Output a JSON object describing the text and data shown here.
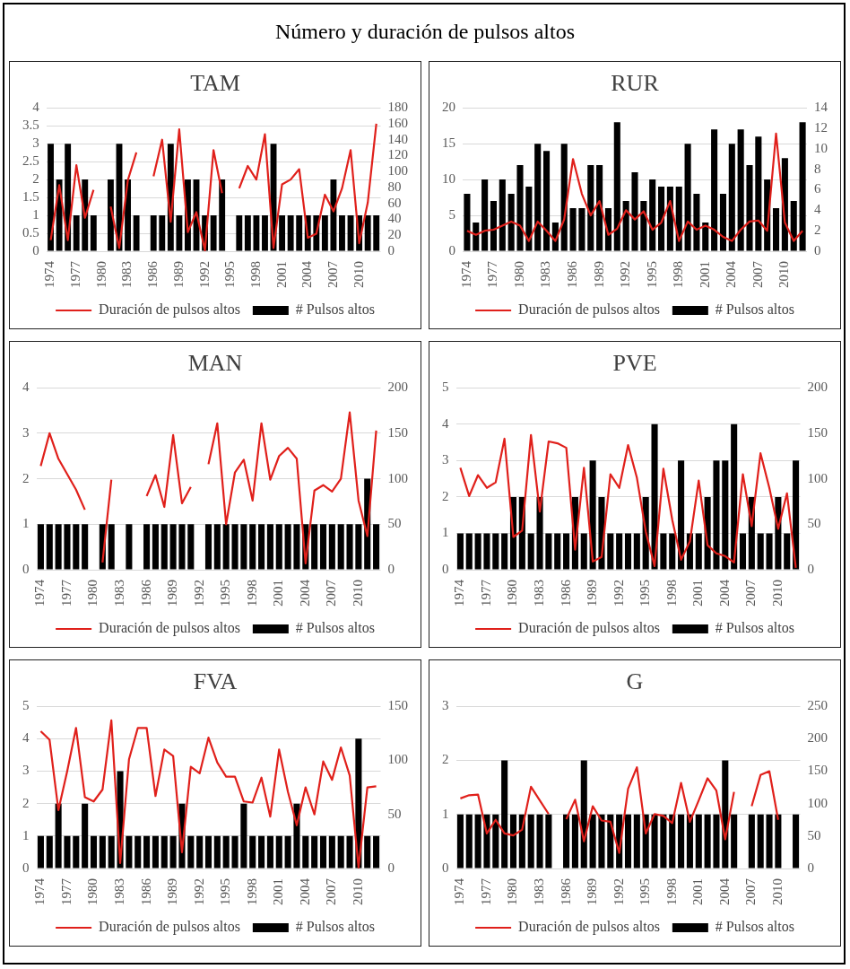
{
  "chart_data": [
    {
      "type": "bar",
      "title": "TAM",
      "annotations": [
        "Número y duración de pulsos altos"
      ],
      "categories": [
        "1974",
        null,
        null,
        "1977",
        null,
        null,
        "1980",
        null,
        null,
        "1983",
        null,
        null,
        "1986",
        null,
        null,
        "1989",
        null,
        null,
        "1992",
        null,
        null,
        "1995",
        null,
        null,
        "1998",
        null,
        null,
        "2001",
        null,
        null,
        "2004",
        null,
        null,
        "2007",
        null,
        null,
        "2010",
        null,
        null
      ],
      "series": [
        {
          "name": "# Pulsos altos",
          "color": "#000000",
          "values": [
            3,
            2,
            3,
            1,
            2,
            1,
            null,
            2,
            3,
            2,
            1,
            null,
            1,
            1,
            3,
            1,
            2,
            2,
            1,
            1,
            2,
            null,
            1,
            1,
            1,
            1,
            3,
            1,
            1,
            1,
            1,
            1,
            1,
            2,
            1,
            1,
            1,
            1,
            1
          ]
        },
        {
          "name": "Duración de pulsos altos",
          "type": "line",
          "axis": "y2",
          "color": "#e0201b",
          "values": [
            14,
            83,
            14,
            108,
            42,
            77,
            null,
            56,
            4,
            89,
            124,
            null,
            94,
            140,
            37,
            153,
            24,
            49,
            1,
            127,
            73,
            null,
            79,
            107,
            90,
            147,
            4,
            84,
            90,
            103,
            17,
            22,
            71,
            50,
            79,
            127,
            10,
            61,
            160
          ]
        }
      ],
      "ylim": [
        0,
        4
      ],
      "yticks": [
        0,
        0.5,
        1,
        1.5,
        2,
        2.5,
        3,
        3.5,
        4
      ],
      "y2lim": [
        0,
        180
      ],
      "y2ticks": [
        0,
        20,
        40,
        60,
        80,
        100,
        120,
        140,
        160,
        180
      ],
      "grid": "y",
      "legend": "bottom"
    },
    {
      "type": "bar",
      "title": "RUR",
      "categories": [
        "1974",
        null,
        null,
        "1977",
        null,
        null,
        "1980",
        null,
        null,
        "1983",
        null,
        null,
        "1986",
        null,
        null,
        "1989",
        null,
        null,
        "1992",
        null,
        null,
        "1995",
        null,
        null,
        "1998",
        null,
        null,
        "2001",
        null,
        null,
        "2004",
        null,
        null,
        "2007",
        null,
        null,
        "2010",
        null,
        null
      ],
      "series": [
        {
          "name": "# Pulsos altos",
          "color": "#000000",
          "values": [
            8,
            4,
            10,
            7,
            10,
            8,
            12,
            9,
            15,
            14,
            4,
            15,
            6,
            6,
            12,
            12,
            6,
            18,
            7,
            11,
            7,
            10,
            9,
            9,
            9,
            15,
            8,
            4,
            17,
            8,
            15,
            17,
            12,
            16,
            10,
            6,
            13,
            7,
            18
          ]
        },
        {
          "name": "Duración de pulsos altos",
          "type": "line",
          "axis": "y2",
          "color": "#e0201b",
          "values": [
            2.0,
            1.6,
            2.0,
            2.1,
            2.5,
            2.9,
            2.5,
            1.0,
            2.9,
            2.0,
            1.0,
            3.1,
            9.0,
            5.6,
            3.5,
            4.9,
            1.6,
            2.2,
            4.0,
            3.1,
            3.9,
            2.1,
            2.8,
            4.9,
            1.0,
            2.9,
            2.1,
            2.5,
            2.1,
            1.4,
            1.0,
            2.1,
            2.9,
            3.0,
            2.0,
            11.5,
            2.8,
            1.0,
            2.0
          ]
        }
      ],
      "ylim": [
        0,
        20
      ],
      "yticks": [
        0,
        5,
        10,
        15,
        20
      ],
      "y2lim": [
        0,
        14
      ],
      "y2ticks": [
        0,
        2,
        4,
        6,
        8,
        10,
        12,
        14
      ],
      "grid": "y",
      "legend": "bottom"
    },
    {
      "type": "bar",
      "title": "MAN",
      "categories": [
        "1974",
        null,
        null,
        "1977",
        null,
        null,
        "1980",
        null,
        null,
        "1983",
        null,
        null,
        "1986",
        null,
        null,
        "1989",
        null,
        null,
        "1992",
        null,
        null,
        "1995",
        null,
        null,
        "1998",
        null,
        null,
        "2001",
        null,
        null,
        "2004",
        null,
        null,
        "2007",
        null,
        null,
        "2010",
        null,
        null
      ],
      "series": [
        {
          "name": "# Pulsos altos",
          "color": "#000000",
          "values": [
            1,
            1,
            1,
            1,
            1,
            1,
            null,
            1,
            1,
            null,
            1,
            null,
            1,
            1,
            1,
            1,
            1,
            1,
            null,
            1,
            1,
            1,
            1,
            1,
            1,
            1,
            1,
            1,
            1,
            1,
            1,
            1,
            1,
            1,
            1,
            1,
            1,
            2,
            1
          ]
        },
        {
          "name": "Duración de pulsos altos",
          "type": "line",
          "axis": "y2",
          "color": "#e0201b",
          "values": [
            114,
            150,
            122,
            105,
            88,
            66,
            null,
            8,
            99,
            null,
            null,
            null,
            81,
            104,
            69,
            148,
            73,
            91,
            null,
            116,
            161,
            50,
            107,
            121,
            76,
            161,
            99,
            125,
            134,
            122,
            7,
            87,
            93,
            86,
            100,
            173,
            76,
            37,
            153
          ]
        }
      ],
      "ylim": [
        0,
        4
      ],
      "yticks": [
        0,
        1,
        2,
        3,
        4
      ],
      "y2lim": [
        0,
        200
      ],
      "y2ticks": [
        0,
        50,
        100,
        150,
        200
      ],
      "grid": "y",
      "legend": "bottom"
    },
    {
      "type": "bar",
      "title": "PVE",
      "categories": [
        "1974",
        null,
        null,
        "1977",
        null,
        null,
        "1980",
        null,
        null,
        "1983",
        null,
        null,
        "1986",
        null,
        null,
        "1989",
        null,
        null,
        "1992",
        null,
        null,
        "1995",
        null,
        null,
        "1998",
        null,
        null,
        "2001",
        null,
        null,
        "2004",
        null,
        null,
        "2007",
        null,
        null,
        "2010",
        null,
        null
      ],
      "series": [
        {
          "name": "# Pulsos altos",
          "color": "#000000",
          "values": [
            1,
            1,
            1,
            1,
            1,
            1,
            2,
            2,
            1,
            2,
            1,
            1,
            1,
            2,
            1,
            3,
            2,
            1,
            1,
            1,
            1,
            2,
            4,
            1,
            1,
            3,
            1,
            1,
            2,
            3,
            3,
            4,
            1,
            2,
            1,
            1,
            2,
            1,
            3
          ]
        },
        {
          "name": "Duración de pulsos altos",
          "type": "line",
          "axis": "y2",
          "color": "#e0201b",
          "values": [
            112,
            81,
            104,
            90,
            96,
            144,
            36,
            43,
            148,
            64,
            141,
            139,
            134,
            22,
            112,
            9,
            14,
            105,
            90,
            137,
            101,
            42,
            4,
            111,
            55,
            11,
            31,
            98,
            27,
            18,
            15,
            8,
            105,
            48,
            128,
            90,
            45,
            84,
            2
          ]
        }
      ],
      "ylim": [
        0,
        5
      ],
      "yticks": [
        0,
        1,
        2,
        3,
        4,
        5
      ],
      "y2lim": [
        0,
        200
      ],
      "y2ticks": [
        0,
        50,
        100,
        150,
        200
      ],
      "grid": "y",
      "legend": "bottom"
    },
    {
      "type": "bar",
      "title": "FVA",
      "categories": [
        "1974",
        null,
        null,
        "1977",
        null,
        null,
        "1980",
        null,
        null,
        "1983",
        null,
        null,
        "1986",
        null,
        null,
        "1989",
        null,
        null,
        "1992",
        null,
        null,
        "1995",
        null,
        null,
        "1998",
        null,
        null,
        "2001",
        null,
        null,
        "2004",
        null,
        null,
        "2007",
        null,
        null,
        "2010",
        null,
        null
      ],
      "series": [
        {
          "name": "# Pulsos altos",
          "color": "#000000",
          "values": [
            1,
            1,
            2,
            1,
            1,
            2,
            1,
            1,
            1,
            3,
            1,
            1,
            1,
            1,
            1,
            1,
            2,
            1,
            1,
            1,
            1,
            1,
            1,
            2,
            1,
            1,
            1,
            1,
            1,
            2,
            1,
            1,
            1,
            1,
            1,
            1,
            4,
            1,
            1
          ]
        },
        {
          "name": "Duración de pulsos altos",
          "type": "line",
          "axis": "y2",
          "color": "#e0201b",
          "values": [
            127,
            119,
            54,
            90,
            130,
            66,
            62,
            73,
            137,
            5,
            101,
            130,
            130,
            67,
            110,
            104,
            15,
            94,
            88,
            121,
            98,
            85,
            85,
            62,
            61,
            84,
            48,
            110,
            71,
            40,
            75,
            50,
            99,
            82,
            112,
            86,
            1,
            75,
            76
          ]
        }
      ],
      "ylim": [
        0,
        5
      ],
      "yticks": [
        0,
        1,
        2,
        3,
        4,
        5
      ],
      "y2lim": [
        0,
        150
      ],
      "y2ticks": [
        0,
        50,
        100,
        150
      ],
      "grid": "y",
      "legend": "bottom"
    },
    {
      "type": "bar",
      "title": "G",
      "categories": [
        "1974",
        null,
        null,
        "1977",
        null,
        null,
        "1980",
        null,
        null,
        "1983",
        null,
        null,
        "1986",
        null,
        null,
        "1989",
        null,
        null,
        "1992",
        null,
        null,
        "1995",
        null,
        null,
        "1998",
        null,
        null,
        "2001",
        null,
        null,
        "2004",
        null,
        null,
        "2007",
        null,
        null,
        "2010",
        null,
        null
      ],
      "series": [
        {
          "name": "# Pulsos altos",
          "color": "#000000",
          "values": [
            1,
            1,
            1,
            1,
            1,
            2,
            1,
            1,
            1,
            1,
            1,
            null,
            1,
            1,
            2,
            1,
            1,
            1,
            1,
            1,
            1,
            1,
            1,
            1,
            1,
            1,
            1,
            1,
            1,
            1,
            2,
            1,
            null,
            1,
            1,
            1,
            1,
            null,
            1
          ]
        },
        {
          "name": "Duración de pulsos altos",
          "type": "line",
          "axis": "y2",
          "color": "#e0201b",
          "values": [
            108,
            113,
            114,
            54,
            75,
            54,
            51,
            60,
            126,
            105,
            84,
            null,
            76,
            106,
            42,
            96,
            74,
            72,
            24,
            123,
            156,
            54,
            84,
            81,
            70,
            132,
            72,
            105,
            139,
            120,
            45,
            118,
            null,
            96,
            144,
            150,
            75,
            null,
            null
          ]
        }
      ],
      "ylim": [
        0,
        3
      ],
      "yticks": [
        0,
        1,
        2,
        3
      ],
      "y2lim": [
        0,
        250
      ],
      "y2ticks": [
        0,
        50,
        100,
        150,
        200,
        250
      ],
      "grid": "y",
      "legend": "bottom"
    }
  ]
}
